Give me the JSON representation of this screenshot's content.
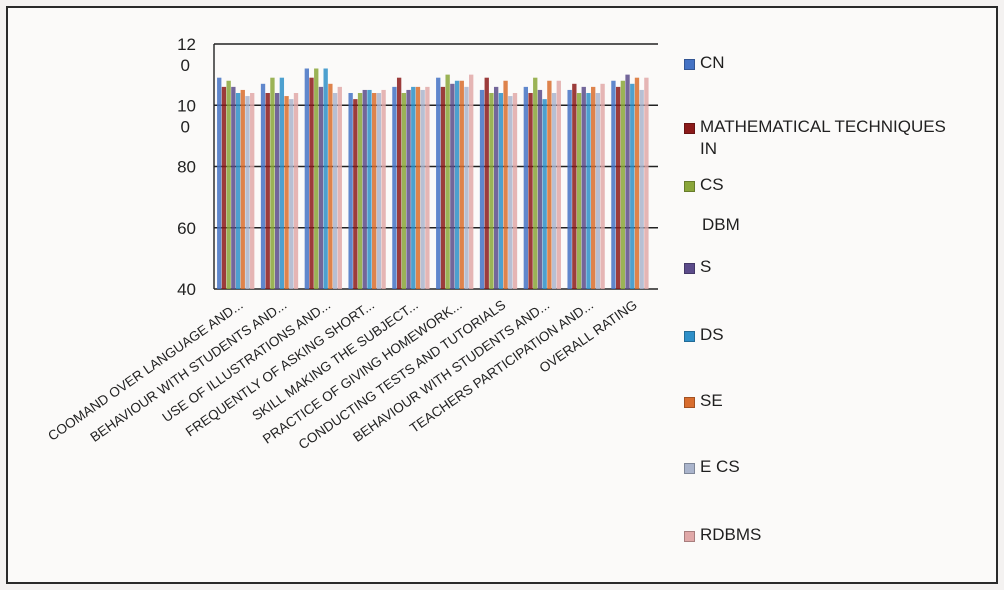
{
  "chart_data": {
    "type": "bar",
    "title": "",
    "xlabel": "",
    "ylabel": "",
    "ylim": [
      40,
      120
    ],
    "y_tick_labels": [
      "40",
      "60",
      "80",
      "10\n0",
      "12\n0"
    ],
    "grid": "horizontal",
    "legend_position": "right",
    "categories": [
      "COOMAND OVER LANGUAGE AND...",
      "BEHAVIOUR WITH STUDENTS AND...",
      "USE OF ILLUSTRATIONS AND...",
      "FREQUENTLY OF ASKING SHORT...",
      "SKILL MAKING THE SUBJECT...",
      "PRACTICE OF GIVING HOMEWORK...",
      "CONDUCTING TESTS AND TUTORIALS",
      "BEHAVIOUR WITH STUDENTS AND...",
      "TEACHERS PARTICIPATION AND...",
      "OVERALL RATING"
    ],
    "series": [
      {
        "name": "CN",
        "color": "#4472c4",
        "values": [
          109,
          107,
          112,
          104,
          106,
          109,
          105,
          106,
          105,
          108
        ]
      },
      {
        "name": "MATHEMATICAL TECHNIQUES\nIN",
        "color": "#8b1a1a",
        "values": [
          106,
          104,
          109,
          102,
          109,
          106,
          109,
          104,
          107,
          106
        ]
      },
      {
        "name": "CS",
        "color": "#8aa63a",
        "values": [
          108,
          109,
          112,
          104,
          104,
          110,
          104,
          109,
          104,
          108
        ]
      },
      {
        "name": "S",
        "color": "#5b4b8a",
        "values": [
          106,
          104,
          106,
          105,
          105,
          107,
          106,
          105,
          106,
          110
        ]
      },
      {
        "name": "DS",
        "color": "#2e8fc8",
        "values": [
          104,
          109,
          112,
          105,
          106,
          108,
          104,
          102,
          104,
          107
        ]
      },
      {
        "name": "SE",
        "color": "#d86d2e",
        "values": [
          105,
          103,
          107,
          104,
          106,
          108,
          108,
          108,
          106,
          109
        ]
      },
      {
        "name": "E CS",
        "color": "#aab4cc",
        "values": [
          103,
          102,
          104,
          104,
          105,
          106,
          103,
          104,
          104,
          105
        ]
      },
      {
        "name": "RDBMS",
        "color": "#e0a8a8",
        "values": [
          104,
          104,
          106,
          105,
          106,
          110,
          104,
          108,
          107,
          109
        ]
      }
    ],
    "legend_extra_text": "DBM"
  }
}
